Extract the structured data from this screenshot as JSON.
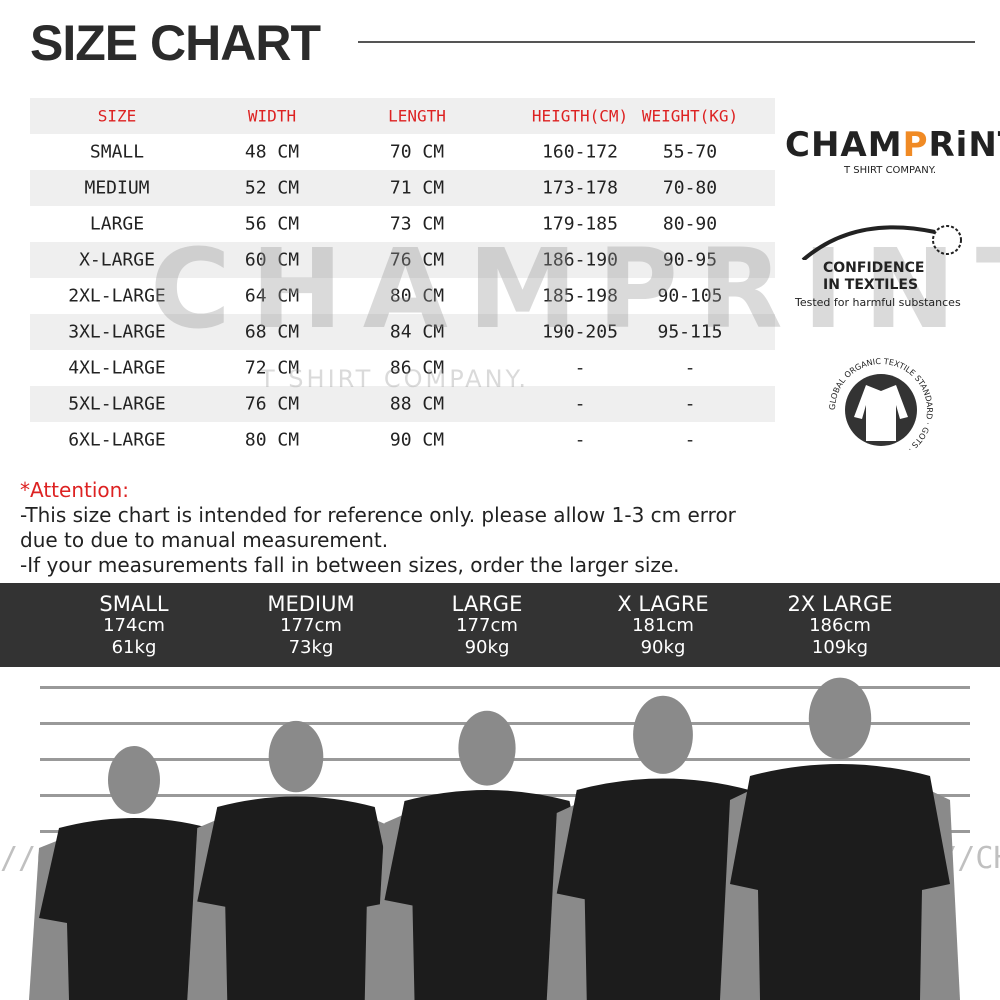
{
  "title": "SIZE CHART",
  "table": {
    "headers": [
      "SIZE",
      "WIDTH",
      "LENGTH",
      "HEIGTH(CM)",
      "WEIGHT(KG)"
    ],
    "rows": [
      [
        "SMALL",
        "48 CM",
        "70 CM",
        "160-172",
        "55-70"
      ],
      [
        "MEDIUM",
        "52 CM",
        "71 CM",
        "173-178",
        "70-80"
      ],
      [
        "LARGE",
        "56 CM",
        "73 CM",
        "179-185",
        "80-90"
      ],
      [
        "X-LARGE",
        "60 CM",
        "76 CM",
        "186-190",
        "90-95"
      ],
      [
        "2XL-LARGE",
        "64 CM",
        "80 CM",
        "185-198",
        "90-105"
      ],
      [
        "3XL-LARGE",
        "68 CM",
        "84 CM",
        "190-205",
        "95-115"
      ],
      [
        "4XL-LARGE",
        "72 CM",
        "86 CM",
        "-",
        "-"
      ],
      [
        "5XL-LARGE",
        "76 CM",
        "88 CM",
        "-",
        "-"
      ],
      [
        "6XL-LARGE",
        "80 CM",
        "90 CM",
        "-",
        "-"
      ]
    ]
  },
  "watermark": {
    "brand": "CHAMPRINT",
    "tagline": "T SHIRT COMPANY.",
    "strip": "//CHAMPRINT//"
  },
  "notes": {
    "attention": "*Attention:",
    "lines": [
      "-This size chart is intended for reference only. please allow 1-3 cm error",
      "due to due to manual measurement.",
      "-If your measurements fall in between sizes, order the larger size."
    ]
  },
  "models": [
    {
      "size": "SMALL",
      "height": "174cm",
      "weight": "61kg"
    },
    {
      "size": "MEDIUM",
      "height": "177cm",
      "weight": "73kg"
    },
    {
      "size": "LARGE",
      "height": "177cm",
      "weight": "90kg"
    },
    {
      "size": "X LAGRE",
      "height": "181cm",
      "weight": "90kg"
    },
    {
      "size": "2X LARGE",
      "height": "186cm",
      "weight": "109kg"
    }
  ],
  "logos": {
    "brand_a": "CHAM",
    "brand_p": "P",
    "brand_b": "RiNT",
    "brand_sub": "T SHIRT COMPANY.",
    "confidence_1": "CONFIDENCE",
    "confidence_2": "IN TEXTILES",
    "confidence_sub": "Tested for harmful substances",
    "gots": "GLOBAL ORGANIC TEXTILE STANDARD · GOTS ·"
  },
  "colors": {
    "header_text": "#dd2222",
    "band": "#333333",
    "accent": "#f08a24"
  }
}
